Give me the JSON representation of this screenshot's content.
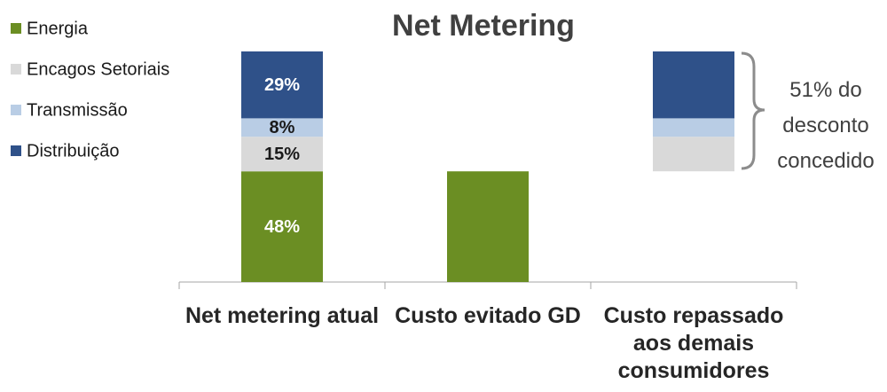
{
  "chart_data": {
    "type": "stacked_bar",
    "title": "Net Metering",
    "categories": [
      "Net metering atual",
      "Custo evitado GD",
      "Custo repassado aos demais consumidores"
    ],
    "series": [
      {
        "name": "Energia",
        "color": "#6b8e23",
        "values": [
          48,
          48,
          null
        ],
        "value_labels": [
          "48%",
          null,
          null
        ]
      },
      {
        "name": "Encagos Setoriais",
        "color": "#d9d9d9",
        "values": [
          15,
          null,
          15
        ],
        "value_labels": [
          "15%",
          null,
          null
        ]
      },
      {
        "name": "Transmissão",
        "color": "#b9cde5",
        "values": [
          8,
          null,
          8
        ],
        "value_labels": [
          "8%",
          null,
          null
        ]
      },
      {
        "name": "Distribuição",
        "color": "#2f5189",
        "values": [
          29,
          null,
          29
        ],
        "value_labels": [
          "29%",
          null,
          null
        ]
      }
    ],
    "annotation": [
      "51% do",
      "desconto",
      "concedido"
    ],
    "legend": "top-left"
  }
}
